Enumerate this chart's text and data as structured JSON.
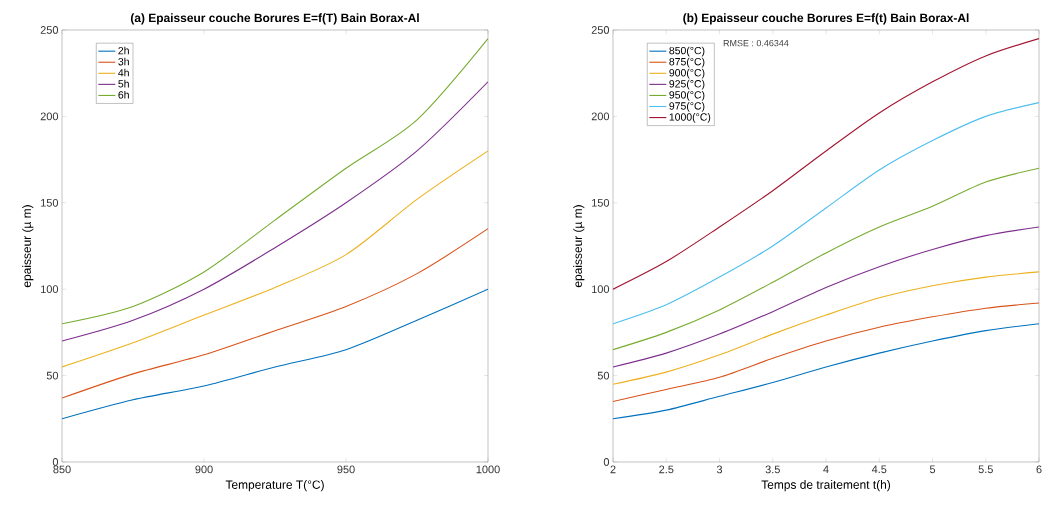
{
  "chart_data": [
    {
      "type": "line",
      "title": "(a) Epaisseur couche Borures E=f(T) Bain Borax-Al",
      "xlabel": "Temperature T(°C)",
      "ylabel": "epaisseur (µ m)",
      "x": [
        850,
        875,
        900,
        925,
        950,
        975,
        1000
      ],
      "series": [
        {
          "name": "2h",
          "color": "#0072bd",
          "values": [
            25,
            36,
            44,
            55,
            65,
            82,
            100
          ]
        },
        {
          "name": "3h",
          "color": "#d95319",
          "values": [
            37,
            51,
            62,
            76,
            90,
            109,
            135
          ]
        },
        {
          "name": "4h",
          "color": "#edb120",
          "values": [
            55,
            69,
            85,
            101,
            120,
            152,
            180
          ]
        },
        {
          "name": "5h",
          "color": "#7e2f8e",
          "values": [
            70,
            82,
            100,
            124,
            150,
            180,
            220
          ]
        },
        {
          "name": "6h",
          "color": "#77ac30",
          "values": [
            80,
            90,
            110,
            140,
            170,
            198,
            245
          ]
        }
      ],
      "xlim": [
        850,
        1000
      ],
      "ylim": [
        0,
        250
      ],
      "xticks": [
        850,
        900,
        950,
        1000
      ],
      "yticks": [
        0,
        50,
        100,
        150,
        200,
        250
      ],
      "legend": "top left"
    },
    {
      "type": "line",
      "title": "(b) Epaisseur couche Borures E=f(t) Bain Borax-Al",
      "xlabel": "Temps de traitement t(h)",
      "ylabel": "epaisseur (µ m)",
      "x": [
        2,
        2.5,
        3,
        3.5,
        4,
        4.5,
        5,
        5.5,
        6
      ],
      "series": [
        {
          "name": "850(°C)",
          "color": "#0072bd",
          "values": [
            25,
            30,
            38,
            46,
            55,
            63,
            70,
            76,
            80
          ]
        },
        {
          "name": "875(°C)",
          "color": "#d95319",
          "values": [
            35,
            42,
            49,
            60,
            70,
            78,
            84,
            89,
            92
          ]
        },
        {
          "name": "900(°C)",
          "color": "#edb120",
          "values": [
            45,
            52,
            62,
            74,
            85,
            95,
            102,
            107,
            110
          ]
        },
        {
          "name": "925(°C)",
          "color": "#7e2f8e",
          "values": [
            55,
            63,
            74,
            87,
            101,
            113,
            123,
            131,
            136
          ]
        },
        {
          "name": "950(°C)",
          "color": "#77ac30",
          "values": [
            65,
            75,
            88,
            104,
            121,
            136,
            148,
            162,
            170
          ]
        },
        {
          "name": "975(°C)",
          "color": "#4dbeee",
          "values": [
            80,
            91,
            107,
            125,
            147,
            169,
            186,
            200,
            208
          ]
        },
        {
          "name": "1000(°C)",
          "color": "#a2142f",
          "values": [
            100,
            116,
            136,
            157,
            180,
            202,
            220,
            235,
            245
          ]
        }
      ],
      "xlim": [
        2,
        6
      ],
      "ylim": [
        0,
        250
      ],
      "xticks": [
        2,
        2.5,
        3,
        3.5,
        4,
        4.5,
        5,
        5.5,
        6
      ],
      "yticks": [
        0,
        50,
        100,
        150,
        200,
        250
      ],
      "legend": "top left",
      "annotations": [
        "RMSE : 0.46344"
      ]
    }
  ]
}
